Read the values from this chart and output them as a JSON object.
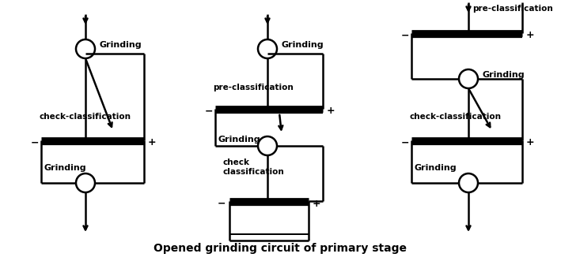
{
  "title": "Opened grinding circuit of primary stage",
  "title_fontsize": 10,
  "title_fontweight": "bold",
  "bg_color": "#ffffff",
  "line_color": "#000000",
  "lw": 1.8,
  "cr": 12,
  "diagrams": [
    {
      "label_grinding_top": "Grinding",
      "label_check": "check-classification",
      "label_grinding_bot": "Grinding"
    },
    {
      "label_grinding_top": "Grinding",
      "label_pre": "pre-classification",
      "label_check": "check\nclassification",
      "label_grinding_mid": "Grinding"
    },
    {
      "label_pre": "pre-classification",
      "label_grinding_top": "Grinding",
      "label_check": "check-classification",
      "label_grinding_bot": "Grinding"
    }
  ]
}
